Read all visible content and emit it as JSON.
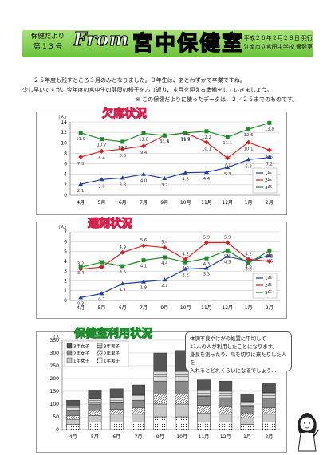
{
  "header": {
    "left_line1": "保健だより",
    "left_line2": "第 1 3 号",
    "from": "From",
    "title": "宮中保健室",
    "date": "平成２６年２月２８日 発行",
    "school": "江南市立宮田中学校 保健室"
  },
  "intro": {
    "line1": "２５年度も残すところ３月のみとなりました。３年生は、あとわずかで卒業ですね。",
    "line2": "少し早いですが、今年度の宮中生の健康の様子をふり返り、４月を迎える準備をしていきましょう。",
    "line3": "※ この保健だよりに使ったデータは，２／２５までのものです。"
  },
  "charts": {
    "absence_title": "欠席状況",
    "late_title": "遅刻状況",
    "room_title": "保健室利用状況",
    "unit": "（人）"
  },
  "note": {
    "line1": "体調不良やけがの処置に平均して",
    "line2": "11人の人が利用したことになります。",
    "line3": "身長を測ったり、爪を切りに来たりした人を",
    "line4": "入れるとどれくらいになるでしょう…"
  },
  "colors": {
    "y1": "#1f3f9a",
    "y2": "#d42222",
    "y3": "#1f8a2a"
  },
  "chart_data": [
    {
      "type": "line",
      "title": "欠席状況",
      "ylabel": "（人）",
      "ylim": [
        0,
        14
      ],
      "categories": [
        "4月",
        "5月",
        "6月",
        "7月",
        "9月",
        "10月",
        "11月",
        "12月",
        "1月",
        "2月"
      ],
      "series": [
        {
          "name": "1年",
          "values": [
            2.1,
            3.0,
            3.3,
            4.0,
            3.2,
            4.3,
            4.4,
            5.3,
            6.8,
            7.2
          ]
        },
        {
          "name": "2年",
          "values": [
            7.3,
            8.4,
            8.8,
            9.4,
            11.4,
            11.9,
            10.1,
            7.1,
            10.1,
            8.6
          ]
        },
        {
          "name": "3年",
          "values": [
            11.9,
            10.7,
            10.2,
            11.8,
            11.4,
            11.9,
            12.2,
            11.1,
            12.6,
            13.8
          ]
        }
      ]
    },
    {
      "type": "line",
      "title": "遅刻状況",
      "ylabel": "（人）",
      "ylim": [
        0,
        7
      ],
      "categories": [
        "4月",
        "5月",
        "6月",
        "7月",
        "9月",
        "10月",
        "11月",
        "12月",
        "1月",
        "2月"
      ],
      "series": [
        {
          "name": "1年",
          "values": [
            0.3,
            0.7,
            1.7,
            1.9,
            2.1,
            3.2,
            3.3,
            4.5,
            4.0,
            4.6
          ]
        },
        {
          "name": "2年",
          "values": [
            3.2,
            3.4,
            4.9,
            5.6,
            5.4,
            4.2,
            5.9,
            5.9,
            4.2,
            4.0
          ]
        },
        {
          "name": "3年",
          "values": [
            3.4,
            3.9,
            3.5,
            4.1,
            4.4,
            3.9,
            4.3,
            5.1,
            3.8,
            5.1
          ]
        }
      ]
    },
    {
      "type": "bar",
      "title": "保健室利用状況",
      "ylabel": "（人）",
      "ylim": [
        0,
        350
      ],
      "categories": [
        "4月",
        "5月",
        "6月",
        "7月",
        "9月",
        "10月",
        "11月",
        "12月",
        "1月",
        "2月"
      ],
      "series": [
        {
          "name": "1年男子",
          "values": [
            20,
            30,
            30,
            30,
            50,
            50,
            30,
            30,
            20,
            30
          ]
        },
        {
          "name": "1年女子",
          "values": [
            20,
            25,
            30,
            30,
            50,
            50,
            35,
            30,
            25,
            30
          ]
        },
        {
          "name": "2年男子",
          "values": [
            15,
            20,
            20,
            25,
            40,
            40,
            30,
            30,
            20,
            25
          ]
        },
        {
          "name": "2年女子",
          "values": [
            20,
            25,
            25,
            30,
            50,
            50,
            35,
            35,
            25,
            35
          ]
        },
        {
          "name": "3年男子",
          "values": [
            15,
            20,
            20,
            20,
            40,
            40,
            25,
            25,
            20,
            25
          ]
        },
        {
          "name": "3年女子",
          "values": [
            25,
            35,
            35,
            40,
            70,
            80,
            40,
            40,
            30,
            35
          ]
        }
      ]
    }
  ]
}
